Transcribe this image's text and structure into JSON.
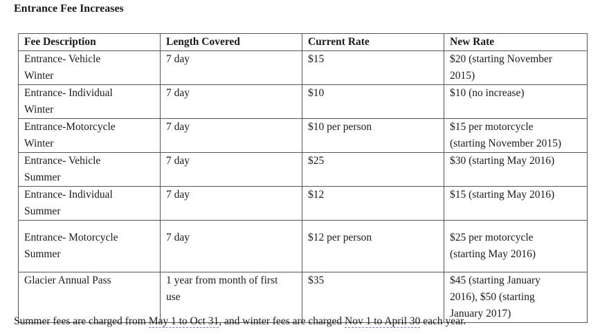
{
  "title": "Entrance Fee Increases",
  "table": {
    "headers": [
      "Fee Description",
      "Length Covered",
      "Current Rate",
      "New Rate"
    ],
    "rows": [
      {
        "description": [
          "Entrance-  Vehicle",
          "Winter"
        ],
        "length": [
          "7 day"
        ],
        "current": [
          "$15"
        ],
        "new": [
          "$20 (starting November",
          "2015)"
        ]
      },
      {
        "description": [
          "Entrance- Individual",
          "Winter"
        ],
        "length": [
          "7 day"
        ],
        "current": [
          "$10"
        ],
        "new": [
          "$10 (no increase)"
        ]
      },
      {
        "description": [
          "Entrance-Motorcycle",
          "Winter"
        ],
        "length": [
          "7 day"
        ],
        "current": [
          "$10 per person"
        ],
        "new": [
          "$15 per motorcycle",
          "(starting November 2015)"
        ]
      },
      {
        "description": [
          "Entrance- Vehicle",
          "Summer"
        ],
        "length": [
          "7 day"
        ],
        "current": [
          "$25"
        ],
        "new": [
          "$30 (starting May 2016)"
        ]
      },
      {
        "description": [
          "Entrance- Individual",
          "Summer"
        ],
        "length": [
          "7 day"
        ],
        "current": [
          "$12"
        ],
        "new": [
          "$15 (starting May 2016)"
        ]
      },
      {
        "description": [
          "Entrance- Motorcycle",
          "Summer"
        ],
        "length": [
          "7 day"
        ],
        "current": [
          "$12 per person"
        ],
        "new": [
          "$25 per motorcycle",
          "(starting May 2016)"
        ]
      },
      {
        "description": [
          "Glacier Annual Pass"
        ],
        "length": [
          "1 year from month of first",
          "use"
        ],
        "current": [
          "$35"
        ],
        "new": [
          "$45 (starting January",
          "2016), $50 (starting",
          "January 2017)"
        ]
      }
    ]
  },
  "footnote": {
    "p1": "Summer fees are charged from ",
    "d1": "May 1 to Oct 31",
    "p2": ", and winter fees are charged ",
    "d2": "Nov 1 to April 30",
    "p3": " each year."
  }
}
